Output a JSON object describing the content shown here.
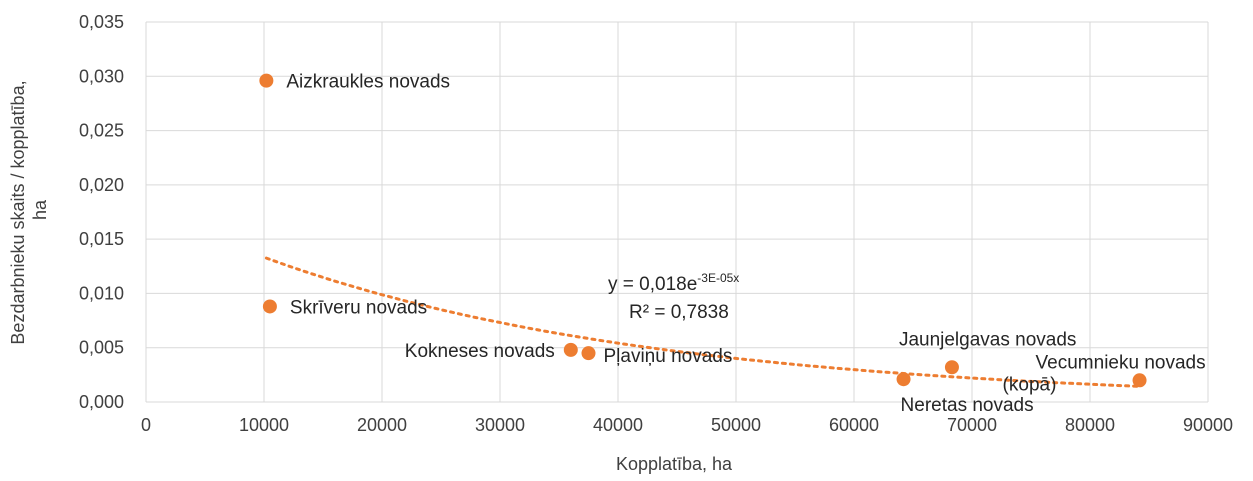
{
  "chart_data": {
    "type": "scatter",
    "xlabel": "Kopplatība, ha",
    "ylabel_lines": [
      "Bezdarbnieku skaits / kopplatība,",
      "ha"
    ],
    "xlim": [
      0,
      90000
    ],
    "ylim": [
      0,
      0.035
    ],
    "x_ticks": [
      "0",
      "10000",
      "20000",
      "30000",
      "40000",
      "50000",
      "60000",
      "70000",
      "80000",
      "90000"
    ],
    "y_ticks": [
      "0,000",
      "0,005",
      "0,010",
      "0,015",
      "0,020",
      "0,025",
      "0,030",
      "0,035"
    ],
    "grid": true,
    "marker_color": "#ED7D31",
    "trendline_color": "#ED7D31",
    "points": [
      {
        "x": 10200,
        "y": 0.0296,
        "label_lines": [
          "Aizkraukles novads"
        ]
      },
      {
        "x": 10500,
        "y": 0.0088,
        "label_lines": [
          "Skrīveru novads"
        ]
      },
      {
        "x": 36000,
        "y": 0.0048,
        "label_lines": [
          "Kokneses novads"
        ]
      },
      {
        "x": 37500,
        "y": 0.0045,
        "label_lines": [
          "Pļaviņu novads"
        ]
      },
      {
        "x": 64200,
        "y": 0.0021,
        "label_lines": [
          "Neretas novads"
        ]
      },
      {
        "x": 68300,
        "y": 0.0032,
        "label_lines": [
          "Jaunjelgavas novads"
        ]
      },
      {
        "x": 84200,
        "y": 0.002,
        "label_lines": [
          "Vecumnieku novads",
          "(kopā)"
        ]
      }
    ],
    "trendline": {
      "type": "exponential",
      "a": 0.018,
      "b": -3e-05,
      "x_range": [
        10200,
        84200
      ],
      "equation_base": "y = 0,018e",
      "equation_exponent": "-3E-05x",
      "r2_text": "R² = 0,7838"
    }
  }
}
